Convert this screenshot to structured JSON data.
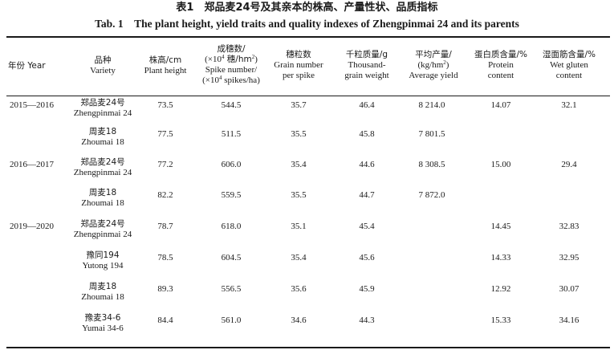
{
  "title_cn": "表1　郑品麦24号及其亲本的株高、产量性状、品质指标",
  "title_en": "Tab. 1　The plant height, yield traits and quality indexes of Zhengpinmai 24 and its parents",
  "headers": {
    "year": "年份 Year",
    "variety_cn": "品种",
    "variety_en": "Variety",
    "height_cn": "株高/cm",
    "height_en": "Plant height",
    "spike_l1": "成穗数/",
    "spike_l2a": "(×10",
    "spike_l2sup": "4",
    "spike_l2b": " 穗/hm",
    "spike_l2sup2": "2",
    "spike_l2c": ")",
    "spike_l3": "Spike number/",
    "spike_l4a": "(×10",
    "spike_l4sup": "4",
    "spike_l4b": " spikes/ha)",
    "grain_cn": "穗粒数",
    "grain_en1": "Grain number",
    "grain_en2": "per spike",
    "tgw_cn": "千粒质量/g",
    "tgw_en1": "Thousand-",
    "tgw_en2": "grain weight",
    "yield_cn": "平均产量/",
    "yield_unit_a": "(kg/hm",
    "yield_unit_sup": "2",
    "yield_unit_b": ")",
    "yield_en": "Average yield",
    "protein_cn": "蛋白质含量/%",
    "protein_en": "Protein",
    "protein_en2": "content",
    "gluten_cn": "湿面筋含量/%",
    "gluten_en": "Wet gluten",
    "gluten_en2": "content"
  },
  "rows": [
    {
      "year": "2015—2016",
      "variety_cn": "郑品麦24号",
      "variety_en": "Zhengpinmai 24",
      "height": "73.5",
      "spike": "544.5",
      "grain": "35.7",
      "tgw": "46.4",
      "yield": "8 214.0",
      "protein": "14.07",
      "gluten": "32.1"
    },
    {
      "year": "",
      "variety_cn": "周麦18",
      "variety_en": "Zhoumai 18",
      "height": "77.5",
      "spike": "511.5",
      "grain": "35.5",
      "tgw": "45.8",
      "yield": "7 801.5",
      "protein": "",
      "gluten": ""
    },
    {
      "year": "2016—2017",
      "variety_cn": "郑品麦24号",
      "variety_en": "Zhengpinmai 24",
      "height": "77.2",
      "spike": "606.0",
      "grain": "35.4",
      "tgw": "44.6",
      "yield": "8 308.5",
      "protein": "15.00",
      "gluten": "29.4"
    },
    {
      "year": "",
      "variety_cn": "周麦18",
      "variety_en": "Zhoumai 18",
      "height": "82.2",
      "spike": "559.5",
      "grain": "35.5",
      "tgw": "44.7",
      "yield": "7 872.0",
      "protein": "",
      "gluten": ""
    },
    {
      "year": "2019—2020",
      "variety_cn": "郑品麦24号",
      "variety_en": "Zhengpinmai 24",
      "height": "78.7",
      "spike": "618.0",
      "grain": "35.1",
      "tgw": "45.4",
      "yield": "",
      "protein": "14.45",
      "gluten": "32.83"
    },
    {
      "year": "",
      "variety_cn": "豫同194",
      "variety_en": "Yutong 194",
      "height": "78.5",
      "spike": "604.5",
      "grain": "35.4",
      "tgw": "45.6",
      "yield": "",
      "protein": "14.33",
      "gluten": "32.95"
    },
    {
      "year": "",
      "variety_cn": "周麦18",
      "variety_en": "Zhoumai 18",
      "height": "89.3",
      "spike": "556.5",
      "grain": "35.6",
      "tgw": "45.9",
      "yield": "",
      "protein": "12.92",
      "gluten": "30.07"
    },
    {
      "year": "",
      "variety_cn": "豫麦34-6",
      "variety_en": "Yumai 34-6",
      "height": "84.4",
      "spike": "561.0",
      "grain": "34.6",
      "tgw": "44.3",
      "yield": "",
      "protein": "15.33",
      "gluten": "34.16"
    }
  ]
}
